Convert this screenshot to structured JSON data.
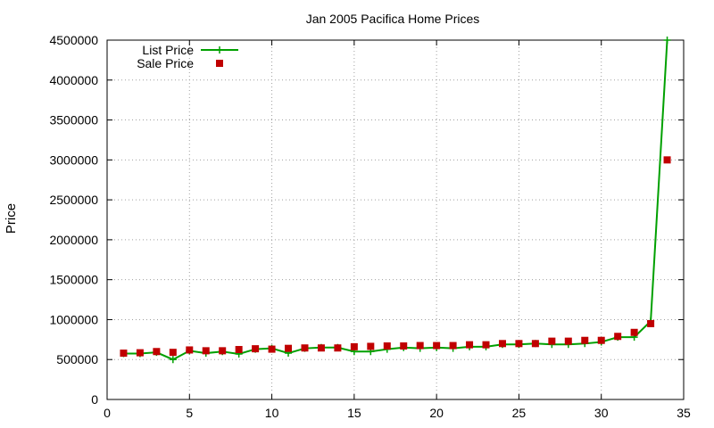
{
  "chart_data": {
    "type": "line",
    "title": "Jan 2005 Pacifica Home Prices",
    "xlabel": "",
    "ylabel": "Price",
    "xlim": [
      0,
      35
    ],
    "ylim": [
      0,
      4500000
    ],
    "xticks": [
      0,
      5,
      10,
      15,
      20,
      25,
      30,
      35
    ],
    "yticks": [
      0,
      500000,
      1000000,
      1500000,
      2000000,
      2500000,
      3000000,
      3500000,
      4000000,
      4500000
    ],
    "grid": true,
    "legend_position": "top-left",
    "series": [
      {
        "name": "List Price",
        "style": "lines+points",
        "color": "#00a000",
        "x": [
          1,
          2,
          3,
          4,
          5,
          6,
          7,
          8,
          9,
          10,
          11,
          12,
          13,
          14,
          15,
          16,
          17,
          18,
          19,
          20,
          21,
          22,
          23,
          24,
          25,
          26,
          27,
          28,
          29,
          30,
          31,
          32,
          33,
          34
        ],
        "y": [
          575000,
          575000,
          590000,
          500000,
          610000,
          580000,
          600000,
          570000,
          630000,
          640000,
          580000,
          640000,
          650000,
          650000,
          600000,
          600000,
          630000,
          650000,
          640000,
          650000,
          640000,
          660000,
          660000,
          690000,
          690000,
          700000,
          690000,
          690000,
          700000,
          720000,
          780000,
          780000,
          980000,
          4500000
        ]
      },
      {
        "name": "Sale Price",
        "style": "points",
        "color": "#c00000",
        "x": [
          1,
          2,
          3,
          4,
          5,
          6,
          7,
          8,
          9,
          10,
          11,
          12,
          13,
          14,
          15,
          16,
          17,
          18,
          19,
          20,
          21,
          22,
          23,
          24,
          25,
          26,
          27,
          28,
          29,
          30,
          31,
          32,
          33,
          34
        ],
        "y": [
          580000,
          585000,
          600000,
          590000,
          620000,
          610000,
          610000,
          625000,
          635000,
          630000,
          640000,
          645000,
          645000,
          645000,
          660000,
          665000,
          670000,
          670000,
          675000,
          675000,
          675000,
          685000,
          685000,
          700000,
          700000,
          700000,
          730000,
          730000,
          740000,
          740000,
          790000,
          840000,
          950000,
          3000000
        ]
      }
    ]
  }
}
